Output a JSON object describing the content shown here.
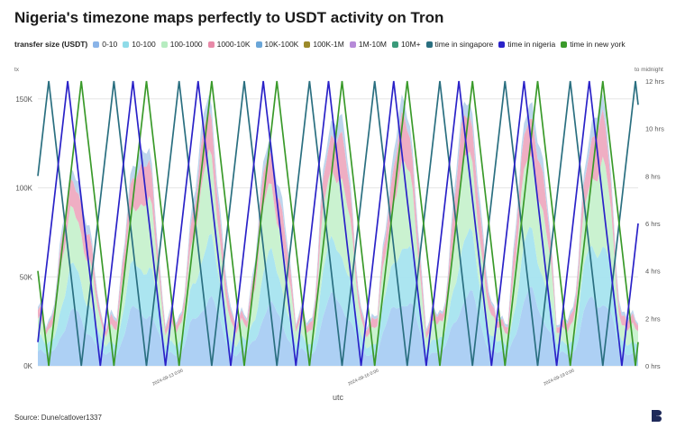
{
  "title": "Nigeria's timezone maps perfectly to USDT activity on Tron",
  "source": "Source: Dune/catlover1337",
  "legend": {
    "title": "transfer size (USDT)",
    "items": [
      {
        "label": "0-10",
        "color": "#8ab4e8"
      },
      {
        "label": "10-100",
        "color": "#8fdbe8"
      },
      {
        "label": "100-1000",
        "color": "#b6ecc0"
      },
      {
        "label": "1000-10K",
        "color": "#e88aa8"
      },
      {
        "label": "10K-100K",
        "color": "#6aa6d8"
      },
      {
        "label": "100K-1M",
        "color": "#9c8a2a"
      },
      {
        "label": "1M-10M",
        "color": "#b68ad8"
      },
      {
        "label": "10M+",
        "color": "#3a9a7a"
      },
      {
        "label": "time in singapore",
        "color": "#2a6f80"
      },
      {
        "label": "time in nigeria",
        "color": "#2a22c8"
      },
      {
        "label": "time in new york",
        "color": "#3a9a2a"
      }
    ]
  },
  "chart_data": {
    "type": "area",
    "xlabel": "utc",
    "ylabel": "tx",
    "y2label": "to midnight",
    "ylim": [
      0,
      160000
    ],
    "y2lim": [
      0,
      12
    ],
    "yticks": [
      {
        "value": 0,
        "label": "0K"
      },
      {
        "value": 50000,
        "label": "50K"
      },
      {
        "value": 100000,
        "label": "100K"
      },
      {
        "value": 150000,
        "label": "150K"
      }
    ],
    "y2ticks": [
      {
        "value": 0,
        "label": "0 hrs"
      },
      {
        "value": 2,
        "label": "2 hrs"
      },
      {
        "value": 4,
        "label": "4 hrs"
      },
      {
        "value": 6,
        "label": "6 hrs"
      },
      {
        "value": 8,
        "label": "8 hrs"
      },
      {
        "value": 10,
        "label": "10 hrs"
      },
      {
        "value": 12,
        "label": "12 hrs"
      }
    ],
    "xticks": [
      {
        "value": 48,
        "label": "2024-09-13 0:00"
      },
      {
        "value": 120,
        "label": "2024-09-16 0:00"
      },
      {
        "value": 192,
        "label": "2024-09-19 0:00"
      }
    ],
    "xlim": [
      0,
      221
    ],
    "daily_totals_k": [
      108,
      128,
      141,
      120,
      148,
      146,
      144,
      148,
      152
    ],
    "series": [
      {
        "name": "0-10",
        "type": "stacked-area"
      },
      {
        "name": "10-100",
        "type": "stacked-area"
      },
      {
        "name": "100-1000",
        "type": "stacked-area"
      },
      {
        "name": "1000-10K",
        "type": "stacked-area"
      },
      {
        "name": "10K-100K",
        "type": "stacked-area"
      },
      {
        "name": "time in singapore",
        "type": "line",
        "axis": "right",
        "utc_offset": 8
      },
      {
        "name": "time in nigeria",
        "type": "line",
        "axis": "right",
        "utc_offset": 1
      },
      {
        "name": "time in new york",
        "type": "line",
        "axis": "right",
        "utc_offset": -4
      }
    ]
  }
}
